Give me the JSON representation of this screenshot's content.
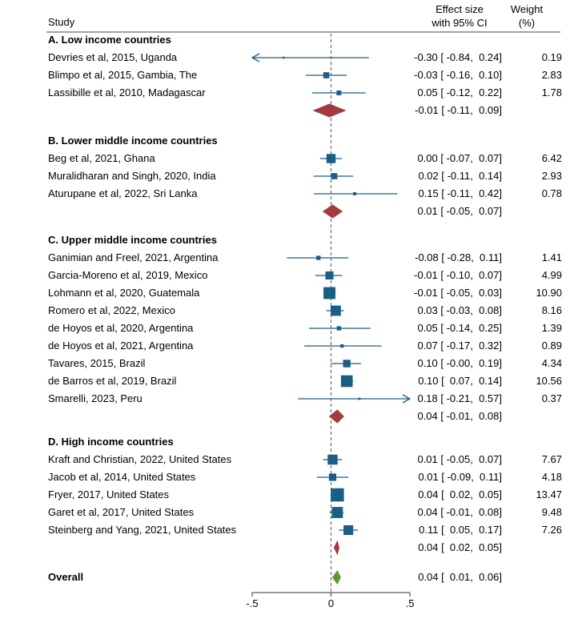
{
  "chart_data": {
    "type": "forest",
    "header": {
      "study": "Study",
      "effect_line1": "Effect size",
      "effect_line2": "with 95% CI",
      "weight_line1": "Weight",
      "weight_line2": "(%)"
    },
    "axis": {
      "range": [
        -0.5,
        0.5
      ],
      "ticks": [
        -0.5,
        0,
        0.5
      ],
      "tick_labels": [
        "-.5",
        "0",
        ".5"
      ],
      "null_line": 0
    },
    "colors": {
      "study": "#1b5e86",
      "subgroup": "#a33a3f",
      "overall": "#5d9a35",
      "null_line": "#555555"
    },
    "groups": [
      {
        "label": "A. Low income countries",
        "studies": [
          {
            "name": "Devries et al, 2015, Uganda",
            "es": -0.3,
            "lo": -0.84,
            "hi": 0.24,
            "ci_text": "-0.30 [ -0.84,  0.24]",
            "weight": 0.19,
            "weight_text": "0.19"
          },
          {
            "name": "Blimpo et al, 2015, Gambia, The",
            "es": -0.03,
            "lo": -0.16,
            "hi": 0.1,
            "ci_text": "-0.03 [ -0.16,  0.10]",
            "weight": 2.83,
            "weight_text": "2.83"
          },
          {
            "name": "Lassibille et al, 2010, Madagascar",
            "es": 0.05,
            "lo": -0.12,
            "hi": 0.22,
            "ci_text": "0.05 [ -0.12,  0.22]",
            "weight": 1.78,
            "weight_text": "1.78"
          }
        ],
        "pooled": {
          "es": -0.01,
          "lo": -0.11,
          "hi": 0.09,
          "ci_text": "-0.01 [ -0.11,  0.09]"
        }
      },
      {
        "label": "B. Lower middle income countries",
        "studies": [
          {
            "name": "Beg et al, 2021, Ghana",
            "es": 0.0,
            "lo": -0.07,
            "hi": 0.07,
            "ci_text": "0.00 [ -0.07,  0.07]",
            "weight": 6.42,
            "weight_text": "6.42"
          },
          {
            "name": "Muralidharan and Singh, 2020, India",
            "es": 0.02,
            "lo": -0.11,
            "hi": 0.14,
            "ci_text": "0.02 [ -0.11,  0.14]",
            "weight": 2.93,
            "weight_text": "2.93"
          },
          {
            "name": "Aturupane et al, 2022, Sri Lanka",
            "es": 0.15,
            "lo": -0.11,
            "hi": 0.42,
            "ci_text": "0.15 [ -0.11,  0.42]",
            "weight": 0.78,
            "weight_text": "0.78"
          }
        ],
        "pooled": {
          "es": 0.01,
          "lo": -0.05,
          "hi": 0.07,
          "ci_text": "0.01 [ -0.05,  0.07]"
        }
      },
      {
        "label": "C. Upper middle income countries",
        "studies": [
          {
            "name": "Ganimian and Freel, 2021, Argentina",
            "es": -0.08,
            "lo": -0.28,
            "hi": 0.11,
            "ci_text": "-0.08 [ -0.28,  0.11]",
            "weight": 1.41,
            "weight_text": "1.41"
          },
          {
            "name": "Garcia-Moreno et al, 2019, Mexico",
            "es": -0.01,
            "lo": -0.1,
            "hi": 0.07,
            "ci_text": "-0.01 [ -0.10,  0.07]",
            "weight": 4.99,
            "weight_text": "4.99"
          },
          {
            "name": "Lohmann et al, 2020, Guatemala",
            "es": -0.01,
            "lo": -0.05,
            "hi": 0.03,
            "ci_text": "-0.01 [ -0.05,  0.03]",
            "weight": 10.9,
            "weight_text": "10.90"
          },
          {
            "name": "Romero et al, 2022, Mexico",
            "es": 0.03,
            "lo": -0.03,
            "hi": 0.08,
            "ci_text": "0.03 [ -0.03,  0.08]",
            "weight": 8.16,
            "weight_text": "8.16"
          },
          {
            "name": "de Hoyos et al, 2020, Argentina",
            "es": 0.05,
            "lo": -0.14,
            "hi": 0.25,
            "ci_text": "0.05 [ -0.14,  0.25]",
            "weight": 1.39,
            "weight_text": "1.39"
          },
          {
            "name": "de Hoyos et al, 2021, Argentina",
            "es": 0.07,
            "lo": -0.17,
            "hi": 0.32,
            "ci_text": "0.07 [ -0.17,  0.32]",
            "weight": 0.89,
            "weight_text": "0.89"
          },
          {
            "name": "Tavares, 2015, Brazil",
            "es": 0.1,
            "lo": -0.0,
            "hi": 0.19,
            "ci_text": "0.10 [ -0.00,  0.19]",
            "weight": 4.34,
            "weight_text": "4.34"
          },
          {
            "name": "de Barros et al, 2019, Brazil",
            "es": 0.1,
            "lo": 0.07,
            "hi": 0.14,
            "ci_text": "0.10 [  0.07,  0.14]",
            "weight": 10.56,
            "weight_text": "10.56"
          },
          {
            "name": "Smarelli, 2023, Peru",
            "es": 0.18,
            "lo": -0.21,
            "hi": 0.57,
            "ci_text": "0.18 [ -0.21,  0.57]",
            "weight": 0.37,
            "weight_text": "0.37"
          }
        ],
        "pooled": {
          "es": 0.04,
          "lo": -0.01,
          "hi": 0.08,
          "ci_text": "0.04 [ -0.01,  0.08]"
        }
      },
      {
        "label": "D. High income countries",
        "studies": [
          {
            "name": "Kraft and Christian, 2022, United States",
            "es": 0.01,
            "lo": -0.05,
            "hi": 0.07,
            "ci_text": "0.01 [ -0.05,  0.07]",
            "weight": 7.67,
            "weight_text": "7.67"
          },
          {
            "name": "Jacob et al, 2014, United States",
            "es": 0.01,
            "lo": -0.09,
            "hi": 0.11,
            "ci_text": "0.01 [ -0.09,  0.11]",
            "weight": 4.18,
            "weight_text": "4.18"
          },
          {
            "name": "Fryer, 2017, United States",
            "es": 0.04,
            "lo": 0.02,
            "hi": 0.05,
            "ci_text": "0.04 [  0.02,  0.05]",
            "weight": 13.47,
            "weight_text": "13.47"
          },
          {
            "name": "Garet et al, 2017, United States",
            "es": 0.04,
            "lo": -0.01,
            "hi": 0.08,
            "ci_text": "0.04 [ -0.01,  0.08]",
            "weight": 9.48,
            "weight_text": "9.48"
          },
          {
            "name": "Steinberg and Yang, 2021, United States",
            "es": 0.11,
            "lo": 0.05,
            "hi": 0.17,
            "ci_text": "0.11 [  0.05,  0.17]",
            "weight": 7.26,
            "weight_text": "7.26"
          }
        ],
        "pooled": {
          "es": 0.04,
          "lo": 0.02,
          "hi": 0.05,
          "ci_text": "0.04 [  0.02,  0.05]"
        }
      }
    ],
    "overall": {
      "label": "Overall",
      "es": 0.04,
      "lo": 0.01,
      "hi": 0.06,
      "ci_text": "0.04 [  0.01,  0.06]"
    }
  }
}
